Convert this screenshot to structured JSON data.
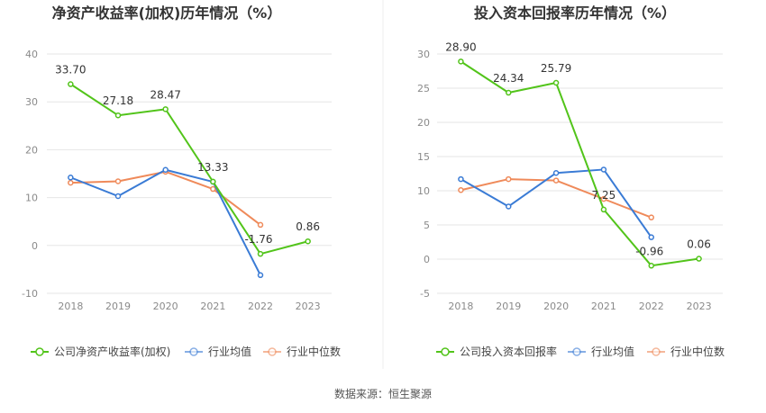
{
  "footer": {
    "source_text": "数据来源：恒生聚源"
  },
  "colors": {
    "company": "#52c41a",
    "avg": "#3a7bd5",
    "median": "#ef8a5a",
    "grid": "#e6e6e6",
    "divider": "#eeeeee"
  },
  "chart_data": [
    {
      "type": "line",
      "title": "净资产收益率(加权)历年情况（%）",
      "categories": [
        "2018",
        "2019",
        "2020",
        "2021",
        "2022",
        "2023"
      ],
      "ylim": [
        -10,
        40
      ],
      "yticks": [
        -10,
        0,
        10,
        20,
        30,
        40
      ],
      "grid": true,
      "legend_position": "bottom",
      "series": [
        {
          "name": "公司净资产收益率(加权)",
          "values": [
            33.7,
            27.18,
            28.47,
            13.33,
            -1.76,
            0.86
          ],
          "labels": [
            "33.70",
            "27.18",
            "28.47",
            "13.33",
            "-1.76",
            "0.86"
          ]
        },
        {
          "name": "行业均值",
          "values": [
            14.2,
            10.3,
            15.8,
            13.3,
            -6.2,
            null
          ]
        },
        {
          "name": "行业中位数",
          "values": [
            13.1,
            13.4,
            15.4,
            11.8,
            4.3,
            null
          ]
        }
      ]
    },
    {
      "type": "line",
      "title": "投入资本回报率历年情况（%）",
      "categories": [
        "2018",
        "2019",
        "2020",
        "2021",
        "2022",
        "2023"
      ],
      "ylim": [
        -5,
        30
      ],
      "yticks": [
        -5,
        0,
        5,
        10,
        15,
        20,
        25,
        30
      ],
      "grid": true,
      "legend_position": "bottom",
      "series": [
        {
          "name": "公司投入资本回报率",
          "values": [
            28.9,
            24.34,
            25.79,
            7.25,
            -0.96,
            0.06
          ],
          "labels": [
            "28.90",
            "24.34",
            "25.79",
            "7.25",
            "-0.96",
            "0.06"
          ]
        },
        {
          "name": "行业均值",
          "values": [
            11.7,
            7.7,
            12.6,
            13.1,
            3.2,
            null
          ]
        },
        {
          "name": "行业中位数",
          "values": [
            10.1,
            11.7,
            11.5,
            8.8,
            6.1,
            null
          ]
        }
      ]
    }
  ]
}
